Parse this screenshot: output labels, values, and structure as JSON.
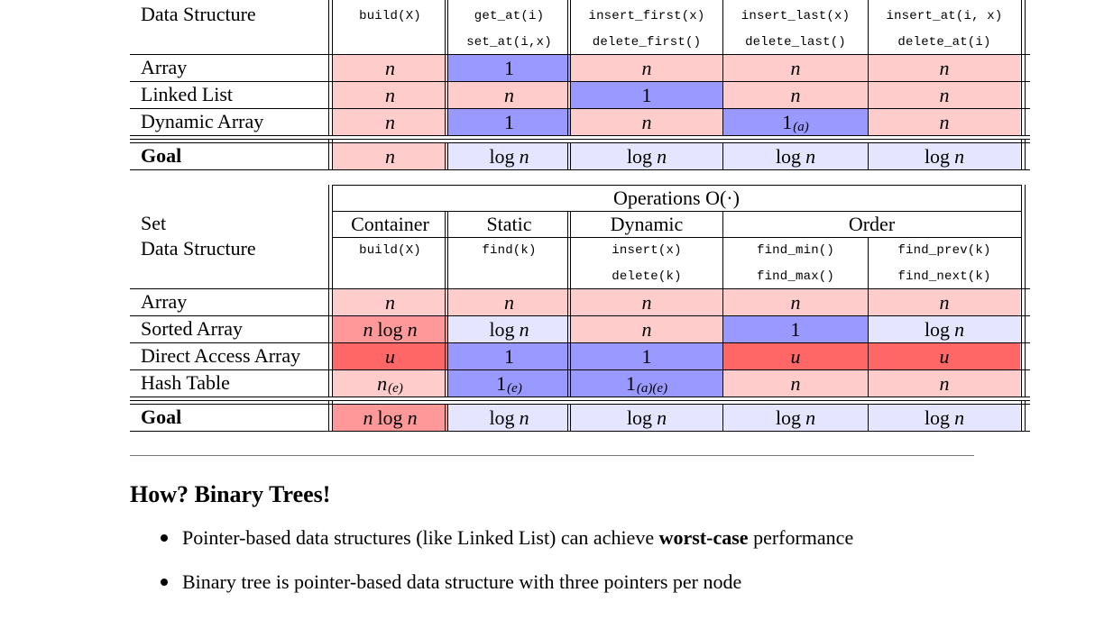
{
  "colors": {
    "light_pink": "#ffcccc",
    "salmon": "#ff9999",
    "red": "#ff6666",
    "blue": "#9999ff",
    "lavender": "#e5e5ff",
    "white": "#ffffff"
  },
  "sequence_table": {
    "label_header": [
      "Data Structure"
    ],
    "op_columns": [
      [
        "build(X)"
      ],
      [
        "get_at(i)",
        "set_at(i,x)"
      ],
      [
        "insert_first(x)",
        "delete_first()"
      ],
      [
        "insert_last(x)",
        "delete_last()"
      ],
      [
        "insert_at(i, x)",
        "delete_at(i)"
      ]
    ],
    "rows": [
      {
        "label": "Array",
        "cells": [
          {
            "v": "n",
            "c": "light_pink"
          },
          {
            "v": "1",
            "c": "blue"
          },
          {
            "v": "n",
            "c": "light_pink"
          },
          {
            "v": "n",
            "c": "light_pink"
          },
          {
            "v": "n",
            "c": "light_pink"
          }
        ]
      },
      {
        "label": "Linked List",
        "cells": [
          {
            "v": "n",
            "c": "light_pink"
          },
          {
            "v": "n",
            "c": "light_pink"
          },
          {
            "v": "1",
            "c": "blue"
          },
          {
            "v": "n",
            "c": "light_pink"
          },
          {
            "v": "n",
            "c": "light_pink"
          }
        ]
      },
      {
        "label": "Dynamic Array",
        "cells": [
          {
            "v": "n",
            "c": "light_pink"
          },
          {
            "v": "1",
            "c": "blue"
          },
          {
            "v": "n",
            "c": "light_pink"
          },
          {
            "v": "1",
            "sub": "(a)",
            "c": "blue"
          },
          {
            "v": "n",
            "c": "light_pink"
          }
        ]
      }
    ],
    "goal": {
      "label": "Goal",
      "cells": [
        {
          "v": "n",
          "c": "light_pink"
        },
        {
          "v": "log n",
          "c": "lavender"
        },
        {
          "v": "log n",
          "c": "lavender"
        },
        {
          "v": "log n",
          "c": "lavender"
        },
        {
          "v": "log n",
          "c": "lavender"
        }
      ]
    }
  },
  "set_table": {
    "title": "Operations O(·)",
    "label_header": [
      "Set",
      "Data Structure"
    ],
    "groups": [
      "Container",
      "Static",
      "Dynamic",
      "Order"
    ],
    "op_columns": [
      [
        "build(X)"
      ],
      [
        "find(k)"
      ],
      [
        "insert(x)",
        "delete(k)"
      ],
      [
        "find_min()",
        "find_max()"
      ],
      [
        "find_prev(k)",
        "find_next(k)"
      ]
    ],
    "rows": [
      {
        "label": "Array",
        "cells": [
          {
            "v": "n",
            "c": "light_pink"
          },
          {
            "v": "n",
            "c": "light_pink"
          },
          {
            "v": "n",
            "c": "light_pink"
          },
          {
            "v": "n",
            "c": "light_pink"
          },
          {
            "v": "n",
            "c": "light_pink"
          }
        ]
      },
      {
        "label": "Sorted Array",
        "cells": [
          {
            "v": "n log n",
            "c": "salmon"
          },
          {
            "v": "log n",
            "c": "lavender"
          },
          {
            "v": "n",
            "c": "light_pink"
          },
          {
            "v": "1",
            "c": "blue"
          },
          {
            "v": "log n",
            "c": "lavender"
          }
        ]
      },
      {
        "label": "Direct Access Array",
        "cells": [
          {
            "v": "u",
            "c": "red"
          },
          {
            "v": "1",
            "c": "blue"
          },
          {
            "v": "1",
            "c": "blue"
          },
          {
            "v": "u",
            "c": "red"
          },
          {
            "v": "u",
            "c": "red"
          }
        ]
      },
      {
        "label": "Hash Table",
        "cells": [
          {
            "v": "n",
            "sub": "(e)",
            "c": "light_pink"
          },
          {
            "v": "1",
            "sub": "(e)",
            "c": "blue"
          },
          {
            "v": "1",
            "sub": "(a)(e)",
            "c": "blue"
          },
          {
            "v": "n",
            "c": "light_pink"
          },
          {
            "v": "n",
            "c": "light_pink"
          }
        ]
      }
    ],
    "goal": {
      "label": "Goal",
      "cells": [
        {
          "v": "n log n",
          "c": "salmon"
        },
        {
          "v": "log n",
          "c": "lavender"
        },
        {
          "v": "log n",
          "c": "lavender"
        },
        {
          "v": "log n",
          "c": "lavender"
        },
        {
          "v": "log n",
          "c": "lavender"
        }
      ]
    }
  },
  "section": {
    "heading": "How? Binary Trees!",
    "bullets": [
      {
        "pre": "Pointer-based data structures (like Linked List) can achieve ",
        "bold": "worst-case",
        "post": " performance"
      },
      {
        "pre": "Binary tree is pointer-based data structure with three pointers per node",
        "bold": "",
        "post": ""
      }
    ]
  }
}
